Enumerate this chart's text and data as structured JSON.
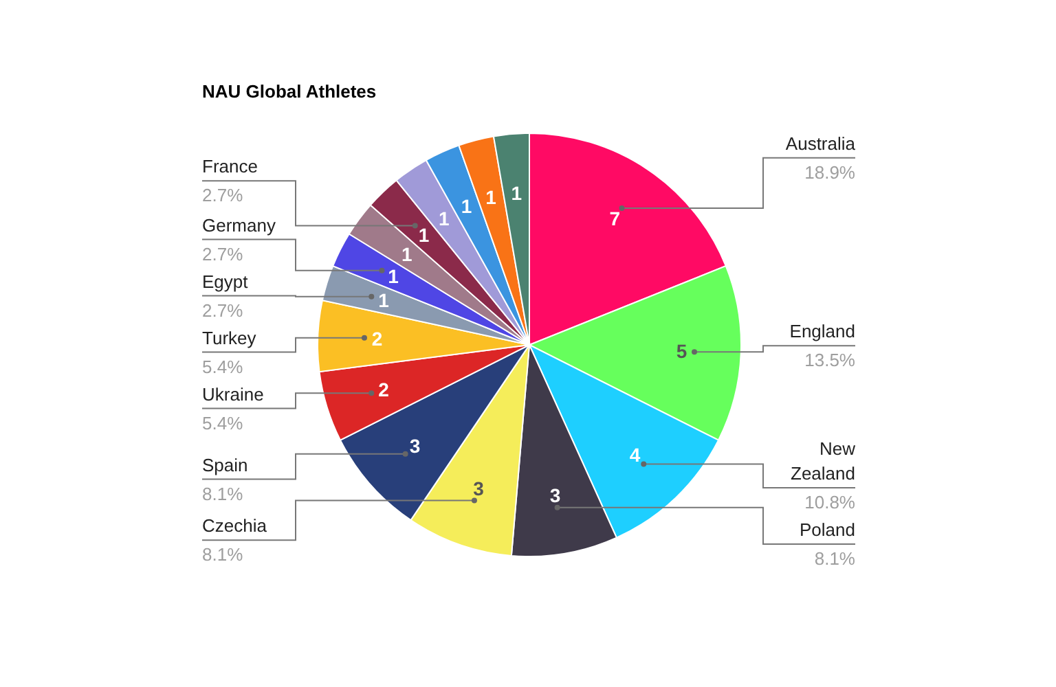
{
  "chart_data": {
    "type": "pie",
    "title": "NAU Global Athletes",
    "categories": [
      "Australia",
      "England",
      "New Zealand",
      "Poland",
      "Czechia",
      "Spain",
      "Ukraine",
      "Turkey",
      "Egypt",
      "Germany",
      null,
      "France",
      null,
      null,
      null,
      null
    ],
    "values": [
      7,
      5,
      4,
      3,
      3,
      3,
      2,
      2,
      1,
      1,
      1,
      1,
      1,
      1,
      1,
      1
    ],
    "colors": [
      "#ff0a64",
      "#66ff5c",
      "#1ecfff",
      "#3f3a4a",
      "#f5ed5a",
      "#283f7a",
      "#dc2626",
      "#fbbf24",
      "#8a9ab0",
      "#4f46e5",
      "#a07a8a",
      "#8b2a4a",
      "#a09ad8",
      "#3b94e0",
      "#f97316",
      "#4b8270"
    ],
    "annotations": [
      "18.9%",
      "13.5%",
      "10.8%",
      "8.1%",
      "8.1%",
      "8.1%",
      "5.4%",
      "5.4%",
      "2.7%",
      "2.7%",
      "2.7%"
    ],
    "data_labels": true
  }
}
